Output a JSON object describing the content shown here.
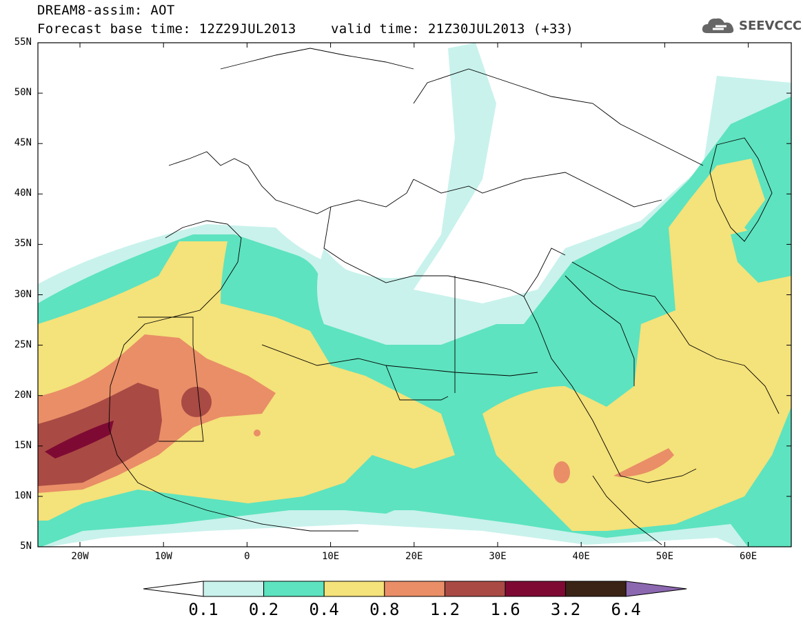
{
  "title": {
    "line1": "DREAM8-assim: AOT",
    "line2_base": "Forecast base time: 12Z29JUL2013",
    "line2_valid": "valid time: 21Z30JUL2013 (+33)"
  },
  "logo": {
    "text": "SEEVCCC",
    "icon": "cloud-icon"
  },
  "axes": {
    "lat_labels": [
      "55N",
      "50N",
      "45N",
      "40N",
      "35N",
      "30N",
      "25N",
      "20N",
      "15N",
      "10N",
      "5N"
    ],
    "lon_labels": [
      "20W",
      "10W",
      "0",
      "10E",
      "20E",
      "30E",
      "40E",
      "50E",
      "60E"
    ]
  },
  "colorbar": {
    "levels": [
      "0.1",
      "0.2",
      "0.4",
      "0.8",
      "1.2",
      "1.6",
      "3.2",
      "6.4"
    ],
    "colors": [
      "#ffffff",
      "#c9f2ec",
      "#5de3bf",
      "#f4e27a",
      "#e98e67",
      "#a94a44",
      "#7e0a34",
      "#3b2416",
      "#8c68b0"
    ]
  }
}
